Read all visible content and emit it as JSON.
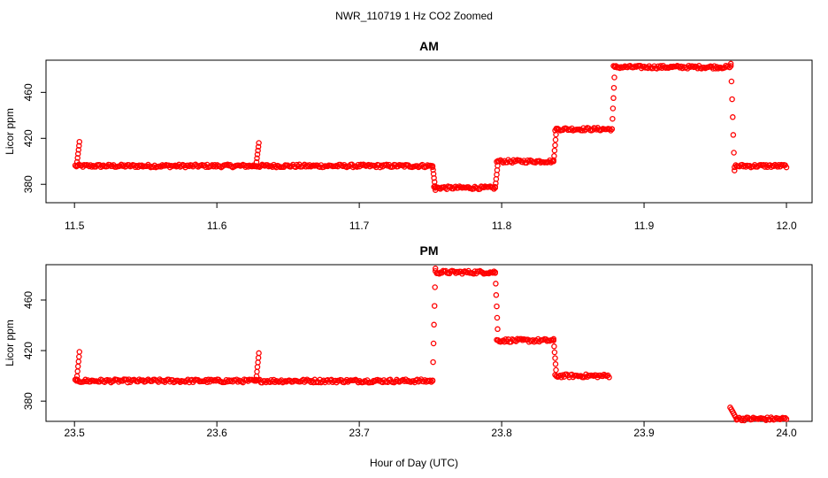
{
  "main_title": "NWR_110719  1 Hz CO2 Zoomed",
  "xlabel": "Hour of Day (UTC)",
  "marker_color": "#ff0000",
  "chart_data": [
    {
      "type": "scatter",
      "title": "AM",
      "ylabel": "Licor ppm",
      "xlim": [
        11.5,
        12.0
      ],
      "ylim": [
        364,
        488
      ],
      "xticks": [
        11.5,
        11.6,
        11.7,
        11.8,
        11.9,
        12.0
      ],
      "xtick_labels": [
        "11.5",
        "11.6",
        "11.7",
        "11.8",
        "11.9",
        "12.0"
      ],
      "yticks": [
        380,
        420,
        460
      ],
      "ytick_labels": [
        "380",
        "420",
        "460"
      ],
      "segments": [
        {
          "x": [
            11.5005,
            11.7515
          ],
          "y": 396
        },
        {
          "x": [
            11.7525,
            11.7955
          ],
          "y": 377
        },
        {
          "x": [
            11.7965,
            11.8365
          ],
          "y": 400
        },
        {
          "x": [
            11.8375,
            11.8775
          ],
          "y": 428
        },
        {
          "x": [
            11.8785,
            11.961
          ],
          "y": 482
        },
        {
          "x": [
            11.9635,
            12.0
          ],
          "y": 396
        }
      ],
      "transitions": [
        {
          "x": [
            11.5015,
            11.5035
          ],
          "y": [
            396,
            417
          ]
        },
        {
          "x": [
            11.6275,
            11.6295
          ],
          "y": [
            396,
            416
          ]
        },
        {
          "x": [
            11.7515,
            11.7535
          ],
          "y": [
            396,
            375
          ]
        },
        {
          "x": [
            11.7955,
            11.7975
          ],
          "y": [
            377,
            400
          ]
        },
        {
          "x": [
            11.8365,
            11.8385
          ],
          "y": [
            400,
            428
          ]
        },
        {
          "x": [
            11.8775,
            11.8795
          ],
          "y": [
            428,
            482
          ]
        },
        {
          "x": [
            11.961,
            11.9635
          ],
          "y": [
            485,
            392
          ]
        }
      ]
    },
    {
      "type": "scatter",
      "title": "PM",
      "ylabel": "Licor ppm",
      "xlim": [
        23.5,
        24.0
      ],
      "ylim": [
        364,
        488
      ],
      "xticks": [
        23.5,
        23.6,
        23.7,
        23.8,
        23.9,
        24.0
      ],
      "xtick_labels": [
        "23.5",
        "23.6",
        "23.7",
        "23.8",
        "23.9",
        "24.0"
      ],
      "yticks": [
        380,
        420,
        460
      ],
      "ytick_labels": [
        "380",
        "420",
        "460"
      ],
      "segments": [
        {
          "x": [
            23.5005,
            23.7515
          ],
          "y": 396
        },
        {
          "x": [
            23.7535,
            23.7955
          ],
          "y": 482
        },
        {
          "x": [
            23.7965,
            23.8365
          ],
          "y": 428
        },
        {
          "x": [
            23.8375,
            23.8755
          ],
          "y": 400
        },
        {
          "x": [
            23.965,
            24.0
          ],
          "y": 366
        }
      ],
      "transitions": [
        {
          "x": [
            23.5015,
            23.5035
          ],
          "y": [
            396,
            419
          ]
        },
        {
          "x": [
            23.6275,
            23.6295
          ],
          "y": [
            396,
            418
          ]
        },
        {
          "x": [
            23.7515,
            23.7535
          ],
          "y": [
            396,
            485
          ]
        },
        {
          "x": [
            23.7955,
            23.7975
          ],
          "y": [
            482,
            428
          ]
        },
        {
          "x": [
            23.8365,
            23.8385
          ],
          "y": [
            428,
            400
          ]
        },
        {
          "x": [
            23.9605,
            23.965
          ],
          "y": [
            375,
            366
          ]
        }
      ]
    }
  ]
}
